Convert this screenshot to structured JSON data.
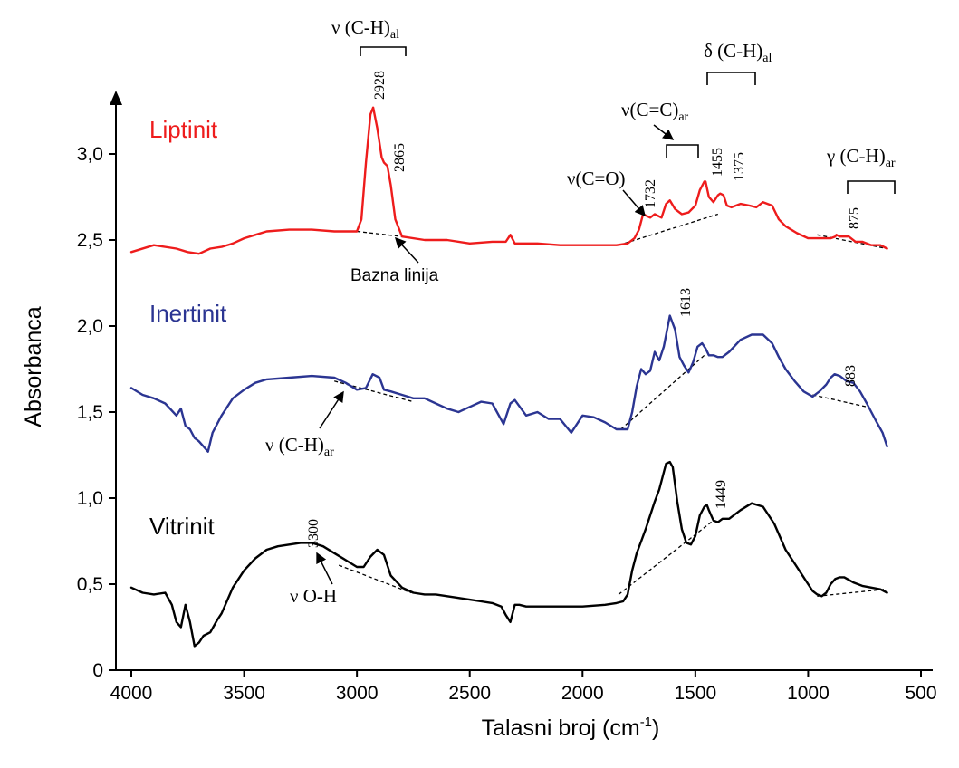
{
  "chart_data": {
    "type": "line",
    "ylabel": "Absorbanca",
    "xlabel_main": "Talasni broj (cm",
    "xlabel_sup": "-1",
    "xlabel_end": ")",
    "xlim": [
      4000,
      500
    ],
    "ylim": [
      0,
      3.3
    ],
    "x_ticks": [
      4000,
      3500,
      3000,
      2500,
      2000,
      1500,
      1000,
      500
    ],
    "x_tick_labels": [
      "4000",
      "3500",
      "3000",
      "2500",
      "2000",
      "1500",
      "1000",
      "500"
    ],
    "y_ticks": [
      0,
      0.5,
      1.0,
      1.5,
      2.0,
      2.5,
      3.0
    ],
    "y_tick_labels": [
      "0",
      "0,5",
      "1,0",
      "1,5",
      "2,0",
      "2,5",
      "3,0"
    ],
    "colors": {
      "Liptinit": "#ee1c1c",
      "Inertinit": "#2b3592",
      "Vitrinit": "#000000"
    },
    "series": [
      {
        "name": "Liptinit",
        "x": [
          4000,
          3900,
          3800,
          3750,
          3700,
          3650,
          3600,
          3550,
          3500,
          3450,
          3400,
          3300,
          3200,
          3100,
          3050,
          3000,
          2980,
          2960,
          2940,
          2928,
          2910,
          2890,
          2880,
          2865,
          2850,
          2830,
          2800,
          2700,
          2600,
          2500,
          2400,
          2340,
          2320,
          2300,
          2200,
          2100,
          2000,
          1900,
          1850,
          1800,
          1770,
          1750,
          1732,
          1700,
          1680,
          1650,
          1630,
          1613,
          1590,
          1560,
          1530,
          1500,
          1480,
          1460,
          1455,
          1440,
          1420,
          1400,
          1390,
          1375,
          1360,
          1340,
          1300,
          1260,
          1230,
          1200,
          1160,
          1130,
          1100,
          1050,
          1000,
          950,
          900,
          880,
          875,
          860,
          820,
          790,
          760,
          720,
          680,
          650
        ],
        "y": [
          2.43,
          2.47,
          2.45,
          2.43,
          2.42,
          2.45,
          2.46,
          2.48,
          2.51,
          2.53,
          2.55,
          2.56,
          2.56,
          2.55,
          2.55,
          2.55,
          2.62,
          2.95,
          3.23,
          3.27,
          3.15,
          2.98,
          2.95,
          2.93,
          2.82,
          2.62,
          2.52,
          2.5,
          2.5,
          2.48,
          2.49,
          2.49,
          2.53,
          2.48,
          2.48,
          2.47,
          2.47,
          2.47,
          2.47,
          2.48,
          2.51,
          2.56,
          2.65,
          2.63,
          2.65,
          2.63,
          2.71,
          2.73,
          2.68,
          2.65,
          2.66,
          2.7,
          2.79,
          2.84,
          2.84,
          2.75,
          2.72,
          2.76,
          2.77,
          2.76,
          2.7,
          2.69,
          2.71,
          2.7,
          2.69,
          2.72,
          2.7,
          2.62,
          2.58,
          2.54,
          2.51,
          2.51,
          2.51,
          2.52,
          2.53,
          2.52,
          2.52,
          2.49,
          2.49,
          2.47,
          2.47,
          2.45
        ]
      },
      {
        "name": "Inertinit",
        "x": [
          4000,
          3950,
          3900,
          3850,
          3800,
          3780,
          3760,
          3740,
          3720,
          3700,
          3680,
          3660,
          3640,
          3600,
          3550,
          3500,
          3450,
          3400,
          3300,
          3200,
          3100,
          3050,
          3000,
          2960,
          2930,
          2900,
          2880,
          2850,
          2800,
          2750,
          2700,
          2650,
          2600,
          2550,
          2500,
          2450,
          2400,
          2350,
          2320,
          2300,
          2250,
          2200,
          2150,
          2100,
          2050,
          2000,
          1950,
          1900,
          1850,
          1800,
          1780,
          1760,
          1740,
          1720,
          1700,
          1680,
          1660,
          1640,
          1613,
          1590,
          1570,
          1550,
          1530,
          1510,
          1490,
          1470,
          1455,
          1440,
          1420,
          1400,
          1380,
          1350,
          1300,
          1250,
          1200,
          1160,
          1130,
          1100,
          1060,
          1020,
          980,
          950,
          920,
          900,
          883,
          860,
          830,
          800,
          770,
          740,
          700,
          670,
          650
        ],
        "y": [
          1.64,
          1.6,
          1.58,
          1.55,
          1.48,
          1.52,
          1.42,
          1.4,
          1.35,
          1.33,
          1.3,
          1.27,
          1.38,
          1.48,
          1.58,
          1.63,
          1.67,
          1.69,
          1.7,
          1.71,
          1.7,
          1.67,
          1.63,
          1.64,
          1.72,
          1.7,
          1.63,
          1.62,
          1.6,
          1.58,
          1.58,
          1.55,
          1.52,
          1.5,
          1.53,
          1.56,
          1.55,
          1.43,
          1.55,
          1.57,
          1.48,
          1.5,
          1.46,
          1.46,
          1.38,
          1.48,
          1.47,
          1.44,
          1.4,
          1.4,
          1.5,
          1.65,
          1.75,
          1.72,
          1.74,
          1.85,
          1.8,
          1.88,
          2.06,
          1.98,
          1.82,
          1.77,
          1.73,
          1.79,
          1.88,
          1.9,
          1.87,
          1.83,
          1.83,
          1.82,
          1.82,
          1.85,
          1.92,
          1.95,
          1.95,
          1.9,
          1.82,
          1.75,
          1.68,
          1.62,
          1.59,
          1.62,
          1.66,
          1.7,
          1.72,
          1.71,
          1.68,
          1.67,
          1.62,
          1.55,
          1.45,
          1.38,
          1.3
        ]
      },
      {
        "name": "Vitrinit",
        "x": [
          4000,
          3950,
          3900,
          3850,
          3820,
          3800,
          3780,
          3760,
          3740,
          3720,
          3700,
          3680,
          3650,
          3620,
          3600,
          3550,
          3500,
          3450,
          3400,
          3350,
          3300,
          3250,
          3200,
          3150,
          3100,
          3050,
          3000,
          2970,
          2940,
          2910,
          2880,
          2850,
          2800,
          2750,
          2700,
          2650,
          2600,
          2550,
          2500,
          2450,
          2400,
          2360,
          2340,
          2320,
          2300,
          2280,
          2250,
          2200,
          2100,
          2000,
          1900,
          1850,
          1820,
          1800,
          1780,
          1760,
          1740,
          1720,
          1700,
          1680,
          1660,
          1640,
          1630,
          1613,
          1600,
          1580,
          1560,
          1540,
          1520,
          1500,
          1480,
          1460,
          1449,
          1440,
          1420,
          1400,
          1380,
          1350,
          1300,
          1250,
          1200,
          1150,
          1100,
          1050,
          1000,
          980,
          960,
          940,
          920,
          900,
          880,
          860,
          840,
          800,
          760,
          720,
          680,
          650
        ],
        "y": [
          0.48,
          0.45,
          0.44,
          0.45,
          0.38,
          0.28,
          0.25,
          0.38,
          0.28,
          0.14,
          0.16,
          0.2,
          0.22,
          0.29,
          0.33,
          0.48,
          0.58,
          0.65,
          0.7,
          0.72,
          0.73,
          0.74,
          0.74,
          0.72,
          0.68,
          0.64,
          0.6,
          0.6,
          0.66,
          0.7,
          0.67,
          0.55,
          0.48,
          0.45,
          0.44,
          0.44,
          0.43,
          0.42,
          0.41,
          0.4,
          0.39,
          0.37,
          0.32,
          0.28,
          0.38,
          0.38,
          0.37,
          0.37,
          0.37,
          0.37,
          0.38,
          0.39,
          0.4,
          0.44,
          0.58,
          0.68,
          0.75,
          0.82,
          0.9,
          0.98,
          1.05,
          1.15,
          1.2,
          1.21,
          1.18,
          0.98,
          0.82,
          0.74,
          0.73,
          0.78,
          0.9,
          0.95,
          0.96,
          0.93,
          0.87,
          0.86,
          0.88,
          0.88,
          0.93,
          0.97,
          0.95,
          0.85,
          0.7,
          0.6,
          0.5,
          0.46,
          0.44,
          0.43,
          0.45,
          0.5,
          0.53,
          0.54,
          0.54,
          0.51,
          0.49,
          0.48,
          0.47,
          0.45
        ]
      }
    ],
    "baselines": [
      {
        "series": "Liptinit",
        "x": [
          3000,
          2800
        ],
        "y": [
          2.55,
          2.52
        ]
      },
      {
        "series": "Liptinit",
        "x": [
          1840,
          1400
        ],
        "y": [
          2.47,
          2.65
        ]
      },
      {
        "series": "Liptinit",
        "x": [
          960,
          650
        ],
        "y": [
          2.53,
          2.45
        ]
      },
      {
        "series": "Inertinit",
        "x": [
          3100,
          2750
        ],
        "y": [
          1.68,
          1.56
        ]
      },
      {
        "series": "Inertinit",
        "x": [
          1830,
          1460
        ],
        "y": [
          1.4,
          1.83
        ]
      },
      {
        "series": "Inertinit",
        "x": [
          980,
          740
        ],
        "y": [
          1.6,
          1.53
        ]
      },
      {
        "series": "Vitrinit",
        "x": [
          3080,
          2760
        ],
        "y": [
          0.61,
          0.45
        ]
      },
      {
        "series": "Vitrinit",
        "x": [
          1840,
          1420
        ],
        "y": [
          0.44,
          0.87
        ]
      },
      {
        "series": "Vitrinit",
        "x": [
          960,
          660
        ],
        "y": [
          0.43,
          0.47
        ]
      }
    ],
    "peak_labels": [
      {
        "text": "2928",
        "series": "Liptinit"
      },
      {
        "text": "2865",
        "series": "Liptinit"
      },
      {
        "text": "1732",
        "series": "Liptinit"
      },
      {
        "text": "1455",
        "series": "Liptinit"
      },
      {
        "text": "1375",
        "series": "Liptinit"
      },
      {
        "text": "875",
        "series": "Liptinit"
      },
      {
        "text": "1613",
        "series": "Inertinit"
      },
      {
        "text": "883",
        "series": "Inertinit"
      },
      {
        "text": "3300",
        "series": "Vitrinit"
      },
      {
        "text": "1449",
        "series": "Vitrinit"
      }
    ],
    "annotations": {
      "ch_al": {
        "main": "ν (C-H)",
        "sub": "al"
      },
      "delta_ch_al": {
        "main": "δ (C-H)",
        "sub": "al"
      },
      "cc_ar": {
        "main": "ν(C=C)",
        "sub": "ar"
      },
      "co": {
        "main": "ν(C=O)"
      },
      "gamma_ch_ar": {
        "main": "γ (C-H)",
        "sub": "ar"
      },
      "ch_ar": {
        "main": "ν (C-H)",
        "sub": "ar"
      },
      "oh": {
        "main": "ν O-H"
      },
      "baseline": {
        "main": "Bazna linija"
      }
    }
  }
}
